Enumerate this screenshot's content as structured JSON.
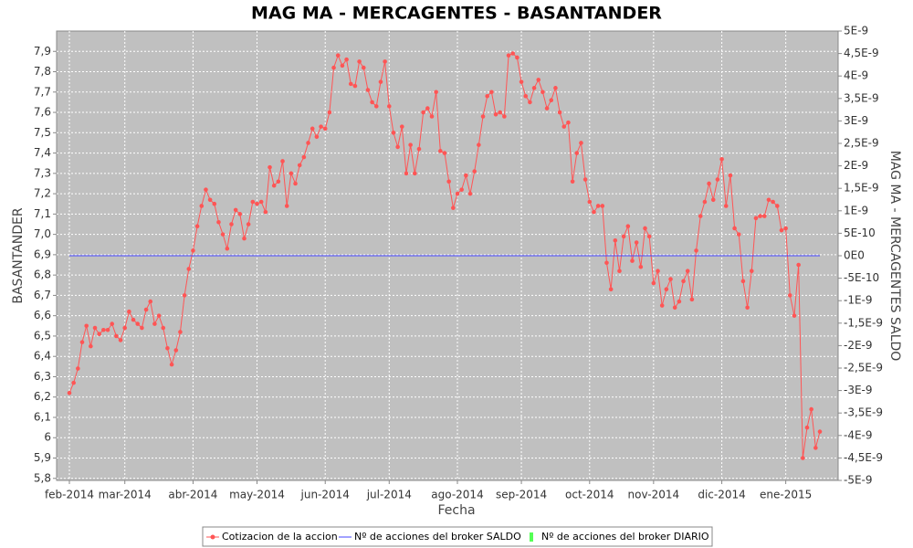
{
  "chart_data": {
    "type": "line",
    "title": "MAG MA - MERCAGENTES - BASANTANDER",
    "x_label": "Fecha",
    "y_label": "BASANTANDER",
    "y2_label": "MAG MA - MERCAGENTES SALDO",
    "grid": true,
    "categories": [
      "feb-2014",
      null,
      null,
      null,
      null,
      null,
      null,
      null,
      null,
      null,
      null,
      null,
      null,
      "mar-2014",
      null,
      null,
      null,
      null,
      null,
      null,
      null,
      null,
      null,
      null,
      null,
      null,
      null,
      null,
      null,
      "abr-2014",
      null,
      null,
      null,
      null,
      null,
      null,
      null,
      null,
      null,
      null,
      null,
      null,
      null,
      null,
      "may-2014",
      null,
      null,
      null,
      null,
      null,
      null,
      null,
      null,
      null,
      null,
      null,
      null,
      null,
      null,
      null,
      "jun-2014",
      null,
      null,
      null,
      null,
      null,
      null,
      null,
      null,
      null,
      null,
      null,
      null,
      null,
      null,
      "jul-2014",
      null,
      null,
      null,
      null,
      null,
      null,
      null,
      null,
      null,
      null,
      null,
      null,
      null,
      null,
      null,
      "ago-2014",
      null,
      null,
      null,
      null,
      null,
      null,
      null,
      null,
      null,
      null,
      null,
      null,
      null,
      null,
      "sep-2014",
      null,
      null,
      null,
      null,
      null,
      null,
      null,
      null,
      null,
      null,
      null,
      null,
      null,
      null,
      null,
      "oct-2014",
      null,
      null,
      null,
      null,
      null,
      null,
      null,
      null,
      null,
      null,
      null,
      null,
      null,
      null,
      "nov-2014",
      null,
      null,
      null,
      null,
      null,
      null,
      null,
      null,
      null,
      null,
      null,
      null,
      null,
      null,
      null,
      "dic-2014",
      null,
      null,
      null,
      null,
      null,
      null,
      null,
      null,
      null,
      null,
      null,
      null,
      null,
      null,
      "ene-2015",
      null,
      null,
      null,
      null,
      null,
      null,
      null,
      null
    ],
    "series": [
      {
        "name": "Cotizacion de la accion",
        "color": "#ff5555",
        "values": [
          6.22,
          6.27,
          6.34,
          6.47,
          6.55,
          6.45,
          6.54,
          6.51,
          6.53,
          6.53,
          6.56,
          6.5,
          6.48,
          6.54,
          6.62,
          6.58,
          6.56,
          6.54,
          6.63,
          6.67,
          6.56,
          6.6,
          6.54,
          6.44,
          6.36,
          6.43,
          6.52,
          6.7,
          6.83,
          6.92,
          7.04,
          7.14,
          7.22,
          7.17,
          7.15,
          7.06,
          7.0,
          6.93,
          7.05,
          7.12,
          7.1,
          6.98,
          7.05,
          7.16,
          7.15,
          7.16,
          7.11,
          7.33,
          7.24,
          7.26,
          7.36,
          7.14,
          7.3,
          7.25,
          7.34,
          7.38,
          7.45,
          7.52,
          7.48,
          7.53,
          7.52,
          7.6,
          7.82,
          7.88,
          7.83,
          7.86,
          7.74,
          7.73,
          7.85,
          7.82,
          7.71,
          7.65,
          7.63,
          7.75,
          7.85,
          7.63,
          7.5,
          7.43,
          7.53,
          7.3,
          7.44,
          7.3,
          7.42,
          7.6,
          7.62,
          7.58,
          7.7,
          7.41,
          7.4,
          7.26,
          7.13,
          7.2,
          7.22,
          7.29,
          7.2,
          7.31,
          7.44,
          7.58,
          7.68,
          7.7,
          7.59,
          7.6,
          7.58,
          7.88,
          7.89,
          7.87,
          7.75,
          7.68,
          7.65,
          7.72,
          7.76,
          7.7,
          7.62,
          7.66,
          7.72,
          7.6,
          7.53,
          7.55,
          7.26,
          7.4,
          7.45,
          7.27,
          7.16,
          7.11,
          7.14,
          7.14,
          6.86,
          6.73,
          6.97,
          6.82,
          6.99,
          7.04,
          6.87,
          6.96,
          6.84,
          7.03,
          6.99,
          6.76,
          6.82,
          6.65,
          6.73,
          6.78,
          6.64,
          6.67,
          6.77,
          6.82,
          6.68,
          6.92,
          7.09,
          7.16,
          7.25,
          7.17,
          7.27,
          7.37,
          7.14,
          7.29,
          7.03,
          7.0,
          6.77,
          6.64,
          6.82,
          7.08,
          7.09,
          7.09,
          7.17,
          7.16,
          7.14,
          7.02,
          7.03,
          6.7,
          6.6,
          6.85,
          5.9,
          6.05,
          6.14,
          5.95,
          6.03
        ]
      },
      {
        "name": "Nº de acciones del broker SALDO",
        "color": "#4444ff",
        "axis": "y2",
        "values": [
          0,
          0,
          0,
          0,
          0,
          0,
          0,
          0,
          0,
          0,
          0,
          0,
          0,
          0,
          0,
          0,
          0,
          0,
          0,
          0,
          0,
          0,
          0,
          0,
          0,
          0,
          0,
          0,
          0,
          0,
          0,
          0,
          0,
          0,
          0,
          0,
          0,
          0,
          0,
          0,
          0,
          0,
          0,
          0,
          0,
          0,
          0,
          0,
          0,
          0,
          0,
          0,
          0,
          0,
          0,
          0,
          0,
          0,
          0,
          0,
          0,
          0,
          0,
          0,
          0,
          0,
          0,
          0,
          0,
          0,
          0,
          0,
          0,
          0,
          0,
          0,
          0,
          0,
          0,
          0,
          0,
          0,
          0,
          0,
          0,
          0,
          0,
          0,
          0,
          0,
          0,
          0,
          0,
          0,
          0,
          0,
          0,
          0,
          0,
          0,
          0,
          0,
          0,
          0,
          0,
          0,
          0,
          0,
          0,
          0,
          0,
          0,
          0,
          0,
          0,
          0,
          0,
          0,
          0,
          0,
          0,
          0,
          0,
          0,
          0,
          0,
          0,
          0,
          0,
          0,
          0,
          0,
          0,
          0,
          0,
          0,
          0,
          0,
          0,
          0,
          0,
          0,
          0,
          0,
          0,
          0,
          0,
          0,
          0,
          0,
          0,
          0,
          0,
          0,
          0,
          0,
          0,
          0,
          0,
          0,
          0,
          0,
          0,
          0,
          0,
          0,
          0,
          0,
          0,
          0,
          0,
          0,
          0,
          0,
          0,
          0,
          0
        ]
      },
      {
        "name": "Nº de acciones del broker DIARIO",
        "color": "#55ff55",
        "axis": "y2",
        "style": "bar",
        "values": [
          0,
          0,
          0,
          0,
          0,
          0,
          0,
          0,
          0,
          0,
          0,
          0,
          0,
          0,
          0,
          0,
          0,
          0,
          0,
          0,
          0,
          0,
          0,
          0,
          0,
          0,
          0,
          0,
          0,
          0,
          0,
          0,
          0,
          0,
          0,
          0,
          0,
          0,
          0,
          0,
          0,
          0,
          0,
          0,
          0,
          0,
          0,
          0,
          0,
          0,
          0,
          0,
          0,
          0,
          0,
          0,
          0,
          0,
          0,
          0,
          0,
          0,
          0,
          0,
          0,
          0,
          0,
          0,
          0,
          0,
          0,
          0,
          0,
          0,
          0,
          0,
          0,
          0,
          0,
          0,
          0,
          0,
          0,
          0,
          0,
          0,
          0,
          0,
          0,
          0,
          0,
          0,
          0,
          0,
          0,
          0,
          0,
          0,
          0,
          0,
          0,
          0,
          0,
          0,
          0,
          0,
          0,
          0,
          0,
          0,
          0,
          0,
          0,
          0,
          0,
          0,
          0,
          0,
          0,
          0,
          0,
          0,
          0,
          0,
          0,
          0,
          0,
          0,
          0,
          0,
          0,
          0,
          0,
          0,
          0,
          0,
          0,
          0,
          0,
          0,
          0,
          0,
          0,
          0,
          0,
          0,
          0,
          0,
          0,
          0,
          0,
          0,
          0,
          0,
          0,
          0,
          0,
          0,
          0,
          0,
          0,
          0,
          0,
          0,
          0,
          0,
          0,
          0,
          0,
          0,
          0,
          0,
          0,
          0,
          0,
          0,
          0
        ]
      }
    ],
    "ylim": [
      5.79,
      8.0
    ],
    "yticks": [
      {
        "value": 5.8,
        "label": "5,8"
      },
      {
        "value": 5.9,
        "label": "5,9"
      },
      6,
      {
        "value": 6.1,
        "label": "6,1"
      },
      {
        "value": 6.2,
        "label": "6,2"
      },
      {
        "value": 6.3,
        "label": "6,3"
      },
      {
        "value": 6.4,
        "label": "6,4"
      },
      {
        "value": 6.5,
        "label": "6,5"
      },
      {
        "value": 6.6,
        "label": "6,6"
      },
      {
        "value": 6.7,
        "label": "6,7"
      },
      {
        "value": 6.8,
        "label": "6,8"
      },
      {
        "value": 6.9,
        "label": "6,9"
      },
      {
        "value": 7.0,
        "label": "7,0"
      },
      {
        "value": 7.1,
        "label": "7,1"
      },
      {
        "value": 7.2,
        "label": "7,2"
      },
      {
        "value": 7.3,
        "label": "7,3"
      },
      {
        "value": 7.4,
        "label": "7,4"
      },
      {
        "value": 7.5,
        "label": "7,5"
      },
      {
        "value": 7.6,
        "label": "7,6"
      },
      {
        "value": 7.7,
        "label": "7,7"
      },
      {
        "value": 7.8,
        "label": "7,8"
      },
      {
        "value": 7.9,
        "label": "7,9"
      }
    ],
    "y2lim": [
      -5e-09,
      5e-09
    ],
    "y2ticks": [
      {
        "value": -5e-09,
        "label": "-5E-9"
      },
      {
        "value": -4.5e-09,
        "label": "-4,5E-9"
      },
      {
        "value": -4e-09,
        "label": "-4E-9"
      },
      {
        "value": -3.5e-09,
        "label": "-3,5E-9"
      },
      {
        "value": -3e-09,
        "label": "-3E-9"
      },
      {
        "value": -2.5e-09,
        "label": "-2,5E-9"
      },
      {
        "value": -2e-09,
        "label": "-2E-9"
      },
      {
        "value": -1.5e-09,
        "label": "-1,5E-9"
      },
      {
        "value": -1e-09,
        "label": "-1E-9"
      },
      {
        "value": -5e-10,
        "label": "-5E-10"
      },
      {
        "value": 0,
        "label": "0E0"
      },
      {
        "value": 5e-10,
        "label": "5E-10"
      },
      {
        "value": 1e-09,
        "label": "1E-9"
      },
      {
        "value": 1.5e-09,
        "label": "1,5E-9"
      },
      {
        "value": 2e-09,
        "label": "2E-9"
      },
      {
        "value": 2.5e-09,
        "label": "2,5E-9"
      },
      {
        "value": 3e-09,
        "label": "3E-9"
      },
      {
        "value": 3.5e-09,
        "label": "3,5E-9"
      },
      {
        "value": 4e-09,
        "label": "4E-9"
      },
      {
        "value": 4.5e-09,
        "label": "4,5E-9"
      },
      {
        "value": 5e-09,
        "label": "5E-9"
      }
    ]
  }
}
